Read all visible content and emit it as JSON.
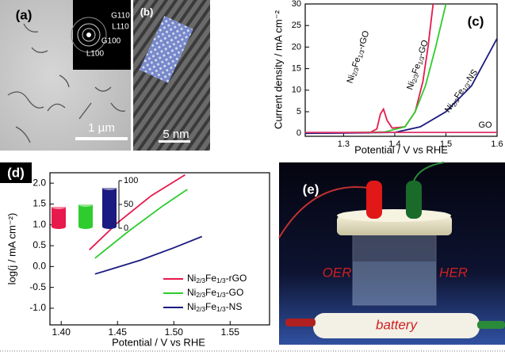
{
  "panels": {
    "a": {
      "label": "(a)",
      "scale_bar": "1 µm",
      "saed_labels": [
        "G110",
        "L110",
        "G100",
        "L100"
      ]
    },
    "b": {
      "label": "(b)",
      "scale_bar": "5 nm"
    },
    "e": {
      "label": "(e)",
      "texts": [
        "OER",
        "HER",
        "battery"
      ]
    }
  },
  "chart_data": [
    {
      "type": "line",
      "panel_label": "(c)",
      "x_label": "Potential / V vs RHE",
      "y_label": "Current density / mA cm⁻²",
      "xlim": [
        1.225,
        1.6
      ],
      "xticks": [
        1.3,
        1.4,
        1.5,
        1.6
      ],
      "ylim": [
        -0.7,
        30
      ],
      "yticks": [
        0,
        5,
        10,
        15,
        20,
        25,
        30
      ],
      "series": [
        {
          "name": "Ni2/3Fe1/3-rGO",
          "color": "#e8194c",
          "x": [
            1.225,
            1.35,
            1.365,
            1.372,
            1.378,
            1.385,
            1.395,
            1.42,
            1.44,
            1.455,
            1.465,
            1.475
          ],
          "values": [
            0,
            0.1,
            1,
            4.5,
            5.6,
            3,
            1.2,
            1.5,
            5,
            12,
            20,
            30
          ]
        },
        {
          "name": "Ni2/3Fe1/3-GO",
          "color": "#2ecc2e",
          "x": [
            1.225,
            1.38,
            1.42,
            1.44,
            1.46,
            1.48,
            1.5
          ],
          "values": [
            0,
            0.3,
            1.5,
            5,
            11,
            20,
            30
          ]
        },
        {
          "name": "Ni2/3Fe1/3-NS",
          "color": "#1a1a80",
          "x": [
            1.225,
            1.4,
            1.45,
            1.5,
            1.55,
            1.6
          ],
          "values": [
            0,
            0.2,
            1.5,
            5,
            11,
            22
          ]
        },
        {
          "name": "GO",
          "color": "#e0306a",
          "x": [
            1.225,
            1.6
          ],
          "values": [
            0.2,
            0.2
          ]
        }
      ]
    },
    {
      "type": "line",
      "panel_label": "(d)",
      "x_label": "Potential / V vs RHE",
      "y_label": "log(j / mA cm⁻²)",
      "xlim": [
        1.39,
        1.585
      ],
      "xticks": [
        {
          "value": 1.4,
          "label": "1.40"
        },
        {
          "value": 1.45,
          "label": "1.45"
        },
        {
          "value": 1.5,
          "label": "1.50"
        },
        {
          "value": 1.55,
          "label": "1.55"
        }
      ],
      "ylim": [
        -1.4,
        2.25
      ],
      "yticks": [
        {
          "value": -1,
          "label": "-1.0"
        },
        {
          "value": -0.5,
          "label": "-0.5"
        },
        {
          "value": 0,
          "label": "0.0"
        },
        {
          "value": 0.5,
          "label": "0.5"
        },
        {
          "value": 1,
          "label": "1.0"
        },
        {
          "value": 1.5,
          "label": "1.5"
        },
        {
          "value": 2,
          "label": "2.0"
        }
      ],
      "legend": "lower right",
      "series": [
        {
          "name": "Ni2/3Fe1/3-rGO",
          "color": "#e8194c",
          "x": [
            1.425,
            1.45,
            1.48,
            1.51
          ],
          "values": [
            0.4,
            1.05,
            1.7,
            2.2
          ]
        },
        {
          "name": "Ni2/3Fe1/3-GO",
          "color": "#2ecc2e",
          "x": [
            1.43,
            1.46,
            1.49,
            1.512
          ],
          "values": [
            0.2,
            0.85,
            1.45,
            1.85
          ]
        },
        {
          "name": "Ni2/3Fe1/3-NS",
          "color": "#1a1a80",
          "x": [
            1.43,
            1.47,
            1.5,
            1.525
          ],
          "values": [
            -0.18,
            0.15,
            0.45,
            0.72
          ]
        }
      ],
      "inset": {
        "type": "bar",
        "categories": [
          null,
          null,
          null
        ],
        "values": [
          45,
          50,
          85
        ],
        "colors": [
          "#e8194c",
          "#2ecc2e",
          "#1a1a80"
        ],
        "ylim": [
          0,
          100
        ],
        "yticks": [
          0,
          50,
          100
        ]
      }
    }
  ]
}
